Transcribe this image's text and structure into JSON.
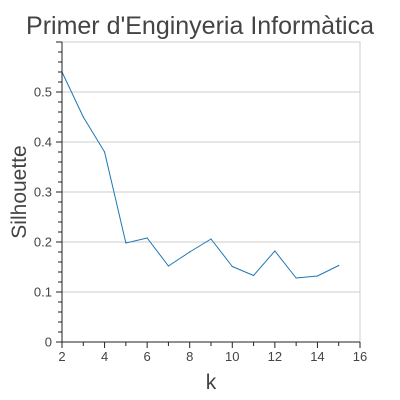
{
  "chart_data": {
    "type": "line",
    "title": "Primer d'Enginyeria Informàtica",
    "xlabel": "k",
    "ylabel": "Silhouette",
    "xlim": [
      2,
      16
    ],
    "ylim": [
      0,
      0.6
    ],
    "x_ticks": [
      2,
      4,
      6,
      8,
      10,
      12,
      14,
      16
    ],
    "y_ticks": [
      0,
      0.1,
      0.2,
      0.3,
      0.4,
      0.5
    ],
    "grid": "horizontal",
    "series": [
      {
        "x": [
          2,
          3,
          4,
          5,
          6,
          7,
          8,
          9,
          10,
          11,
          12,
          13,
          14,
          15
        ],
        "values": [
          0.54,
          0.45,
          0.38,
          0.198,
          0.208,
          0.152,
          0.18,
          0.206,
          0.151,
          0.133,
          0.182,
          0.128,
          0.132,
          0.153
        ],
        "color": "#1f77b4"
      }
    ]
  }
}
